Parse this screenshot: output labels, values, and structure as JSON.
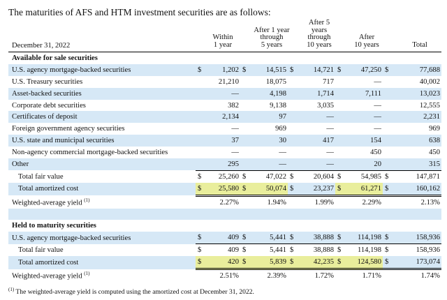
{
  "intro": "The maturities of AFS and HTM investment securities are as follows:",
  "header": {
    "date": "December 31, 2022",
    "columns": [
      [
        "Within",
        "1 year"
      ],
      [
        "After 1 year",
        "through",
        "5 years"
      ],
      [
        "After 5 years",
        "through",
        "10 years"
      ],
      [
        "After",
        "10 years"
      ],
      [
        "Total"
      ]
    ]
  },
  "rows": [
    {
      "kind": "section",
      "label": "Available for sale securities"
    },
    {
      "kind": "row",
      "label": "U.S. agency mortgage-backed securities",
      "band": true,
      "dollar": true,
      "cells": [
        "1,202",
        "14,515",
        "14,721",
        "47,250",
        "77,688"
      ]
    },
    {
      "kind": "row",
      "label": "U.S. Treasury securities",
      "cells": [
        "21,210",
        "18,075",
        "717",
        "—",
        "40,002"
      ]
    },
    {
      "kind": "row",
      "label": "Asset-backed securities",
      "band": true,
      "cells": [
        "—",
        "4,198",
        "1,714",
        "7,111",
        "13,023"
      ]
    },
    {
      "kind": "row",
      "label": "Corporate debt securities",
      "cells": [
        "382",
        "9,138",
        "3,035",
        "—",
        "12,555"
      ]
    },
    {
      "kind": "row",
      "label": "Certificates of deposit",
      "band": true,
      "cells": [
        "2,134",
        "97",
        "—",
        "—",
        "2,231"
      ]
    },
    {
      "kind": "row",
      "label": "Foreign government agency securities",
      "cells": [
        "—",
        "969",
        "—",
        "—",
        "969"
      ]
    },
    {
      "kind": "row",
      "label": "U.S. state and municipal securities",
      "band": true,
      "cells": [
        "37",
        "30",
        "417",
        "154",
        "638"
      ]
    },
    {
      "kind": "row",
      "label": "Non-agency commercial mortgage-backed securities",
      "cells": [
        "—",
        "—",
        "—",
        "450",
        "450"
      ]
    },
    {
      "kind": "row",
      "label": "Other",
      "band": true,
      "cells": [
        "295",
        "—",
        "—",
        "20",
        "315"
      ]
    },
    {
      "kind": "row",
      "label": "Total fair value",
      "indent": true,
      "top": true,
      "dollar": true,
      "cells": [
        "25,260",
        "47,022",
        "20,604",
        "54,985",
        "147,871"
      ]
    },
    {
      "kind": "row",
      "label": "Total amortized cost",
      "indent": true,
      "band": true,
      "dollar": true,
      "dbl": true,
      "cells": [
        "25,580",
        "50,074",
        "23,237",
        "61,271",
        "160,162"
      ],
      "highlight": [
        0,
        1,
        3
      ]
    },
    {
      "kind": "yield",
      "label": "Weighted-average yield",
      "sup": "(1)",
      "cells": [
        "2.27%",
        "1.94%",
        "1.99%",
        "2.29%",
        "2.13%"
      ]
    },
    {
      "kind": "spacer",
      "band": true
    },
    {
      "kind": "section",
      "label": "Held to maturity securities"
    },
    {
      "kind": "row",
      "label": "U.S. agency mortgage-backed securities",
      "band": true,
      "dollar": true,
      "cells": [
        "409",
        "5,441",
        "38,888",
        "114,198",
        "158,936"
      ]
    },
    {
      "kind": "row",
      "label": "Total fair value",
      "indent": true,
      "top": true,
      "dollar": true,
      "cells": [
        "409",
        "5,441",
        "38,888",
        "114,198",
        "158,936"
      ]
    },
    {
      "kind": "row",
      "label": "Total amortized cost",
      "indent": true,
      "band": true,
      "dollar": true,
      "dbl": true,
      "cells": [
        "420",
        "5,839",
        "42,235",
        "124,580",
        "173,074"
      ],
      "highlight": [
        0,
        1,
        2,
        3
      ]
    },
    {
      "kind": "yield",
      "label": "Weighted-average yield",
      "sup": "(1)",
      "cells": [
        "2.51%",
        "2.39%",
        "1.72%",
        "1.71%",
        "1.74%"
      ]
    }
  ],
  "footnote": {
    "mark": "(1)",
    "text": "The weighted-average yield is computed using the amortized cost at December 31, 2022."
  },
  "colors": {
    "band": "#d6e8f6",
    "highlight": "#e9ee9c"
  }
}
